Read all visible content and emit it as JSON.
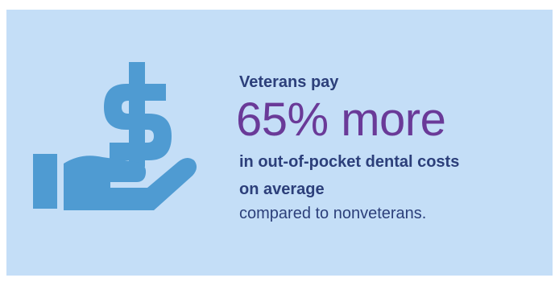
{
  "colors": {
    "background": "#c4def7",
    "icon": "#4f9bd2",
    "heading_text": "#2c3f7a",
    "highlight_text": "#6a3a98"
  },
  "icon": {
    "name": "hand-holding-dollar-icon"
  },
  "text": {
    "lead": "Veterans pay",
    "highlight": "65% more",
    "bold_line_1": "in out-of-pocket dental costs",
    "bold_line_2": "on average",
    "plain_line": "compared to nonveterans."
  }
}
